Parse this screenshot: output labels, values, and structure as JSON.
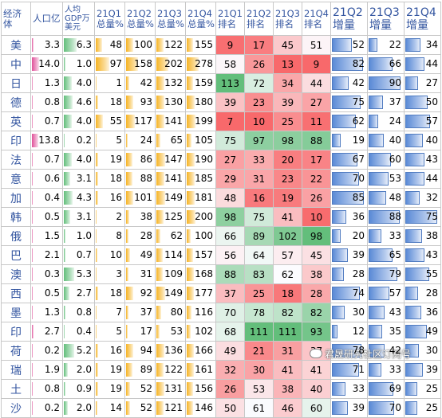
{
  "headers": [
    "经济体",
    "人口亿",
    "人均GDP万美元",
    "21Q1总量%",
    "21Q2总量%",
    "21Q3总量%",
    "21Q4总量%",
    "21Q1排名",
    "21Q2排名",
    "21Q3排名",
    "21Q4排名",
    "21Q2增量",
    "21Q3增量",
    "21Q4增量"
  ],
  "watermark": "君晟研究社区订阅号",
  "colors": {
    "pop_bar": "#e0529a",
    "gdp_bar": "#63be7b",
    "pct_bar": "#f5b324",
    "inc_bar": "#5a8ad6",
    "rank_best": "#63be7b",
    "rank_mid": "#fcfcff",
    "rank_worst": "#f8696b"
  },
  "chart_data": {
    "type": "table",
    "columns": [
      "经济体",
      "人口亿",
      "人均GDP万美元",
      "21Q1总量%",
      "21Q2总量%",
      "21Q3总量%",
      "21Q4总量%",
      "21Q1排名",
      "21Q2排名",
      "21Q3排名",
      "21Q4排名",
      "21Q2增量",
      "21Q3增量",
      "21Q4增量"
    ],
    "rows": [
      [
        "美",
        "3.3",
        "6.3",
        48,
        100,
        122,
        155,
        9,
        17,
        45,
        51,
        52,
        22,
        34
      ],
      [
        "中",
        "14.0",
        "1.0",
        97,
        158,
        202,
        278,
        58,
        26,
        13,
        9,
        82,
        66,
        44
      ],
      [
        "日",
        "1.3",
        "4.0",
        1,
        42,
        132,
        159,
        113,
        72,
        34,
        44,
        42,
        90,
        27
      ],
      [
        "德",
        "0.8",
        "4.6",
        18,
        93,
        130,
        180,
        39,
        23,
        39,
        27,
        75,
        37,
        50
      ],
      [
        "英",
        "0.7",
        "4.0",
        55,
        117,
        141,
        199,
        7,
        10,
        25,
        11,
        62,
        24,
        57
      ],
      [
        "印",
        "13.8",
        "0.2",
        5,
        24,
        65,
        105,
        75,
        97,
        98,
        88,
        19,
        40,
        40
      ],
      [
        "法",
        "0.7",
        "4.0",
        19,
        86,
        147,
        190,
        27,
        33,
        20,
        17,
        67,
        60,
        43
      ],
      [
        "意",
        "0.6",
        "3.1",
        18,
        88,
        141,
        185,
        29,
        31,
        23,
        22,
        70,
        53,
        44
      ],
      [
        "加",
        "0.4",
        "4.3",
        16,
        101,
        149,
        181,
        48,
        16,
        19,
        26,
        85,
        48,
        32
      ],
      [
        "韩",
        "0.5",
        "3.1",
        2,
        38,
        125,
        200,
        98,
        75,
        41,
        10,
        36,
        88,
        75
      ],
      [
        "俄",
        "1.5",
        "1.0",
        8,
        28,
        62,
        100,
        66,
        89,
        102,
        98,
        20,
        33,
        38
      ],
      [
        "巴",
        "2.1",
        "0.7",
        10,
        49,
        114,
        157,
        56,
        64,
        57,
        45,
        39,
        65,
        43
      ],
      [
        "澳",
        "0.3",
        "5.3",
        3,
        31,
        109,
        168,
        88,
        83,
        62,
        38,
        28,
        79,
        55
      ],
      [
        "西",
        "0.5",
        "2.7",
        18,
        92,
        149,
        177,
        37,
        25,
        18,
        28,
        74,
        57,
        28
      ],
      [
        "墨",
        "1.3",
        "0.8",
        7,
        37,
        80,
        116,
        70,
        78,
        82,
        82,
        30,
        43,
        36
      ],
      [
        "印",
        "2.7",
        "0.4",
        5,
        17,
        53,
        102,
        68,
        111,
        111,
        93,
        12,
        35,
        49
      ],
      [
        "荷",
        "0.2",
        "5.2",
        16,
        94,
        136,
        166,
        49,
        21,
        31,
        37,
        78,
        42,
        30
      ],
      [
        "瑞",
        "1.9",
        "2.0",
        19,
        89,
        122,
        161,
        32,
        30,
        41,
        41,
        71,
        33,
        39
      ],
      [
        "土",
        "0.8",
        "0.9",
        19,
        52,
        131,
        156,
        26,
        53,
        38,
        40,
        33,
        69,
        25
      ],
      [
        "沙",
        "0.2",
        "2.0",
        14,
        52,
        121,
        146,
        50,
        61,
        46,
        60,
        39,
        70,
        25
      ]
    ]
  }
}
